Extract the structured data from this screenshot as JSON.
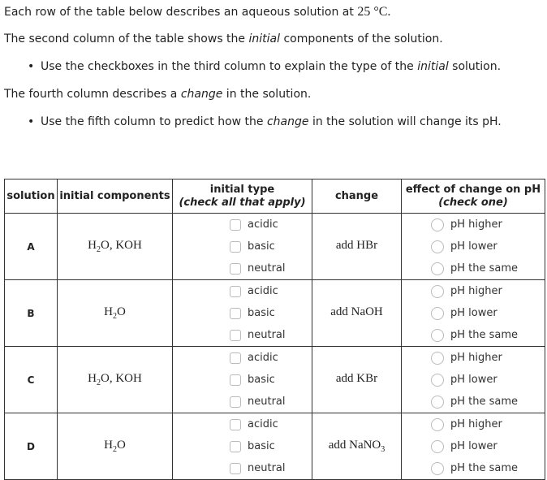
{
  "intro": {
    "line1_pre": "Each row of the table below describes an aqueous solution at ",
    "line1_temp": "25 °C.",
    "line2_pre": "The second column of the table shows the ",
    "line2_em": "initial",
    "line2_post": " components of the solution.",
    "bullet1_pre": "Use the checkboxes in the third column to explain the type of the ",
    "bullet1_em": "initial",
    "bullet1_post": " solution.",
    "line3_pre": "The fourth column describes a ",
    "line3_em": "change",
    "line3_post": " in the solution.",
    "bullet2_pre": "Use the fifth column to predict how the ",
    "bullet2_em": "change",
    "bullet2_post": " in the solution will change its pH."
  },
  "table": {
    "headers": {
      "solution": "solution",
      "components": "initial components",
      "type": "initial type",
      "type_note": "(check all that apply)",
      "change": "change",
      "effect": "effect of change on pH",
      "effect_note": "(check one)"
    },
    "type_options": [
      "acidic",
      "basic",
      "neutral"
    ],
    "effect_options": [
      "pH higher",
      "pH lower",
      "pH the same"
    ],
    "rows": [
      {
        "label": "A",
        "components": [
          [
            "H",
            "2",
            "O, KOH"
          ]
        ],
        "change": [
          "add HBr",
          ""
        ]
      },
      {
        "label": "B",
        "components": [
          [
            "H",
            "2",
            "O"
          ]
        ],
        "change": [
          "add NaOH",
          ""
        ]
      },
      {
        "label": "C",
        "components": [
          [
            "H",
            "2",
            "O, KOH"
          ]
        ],
        "change": [
          "add KBr",
          ""
        ]
      },
      {
        "label": "D",
        "components": [
          [
            "H",
            "2",
            "O"
          ]
        ],
        "change": [
          "add NaNO",
          "3"
        ]
      }
    ]
  }
}
